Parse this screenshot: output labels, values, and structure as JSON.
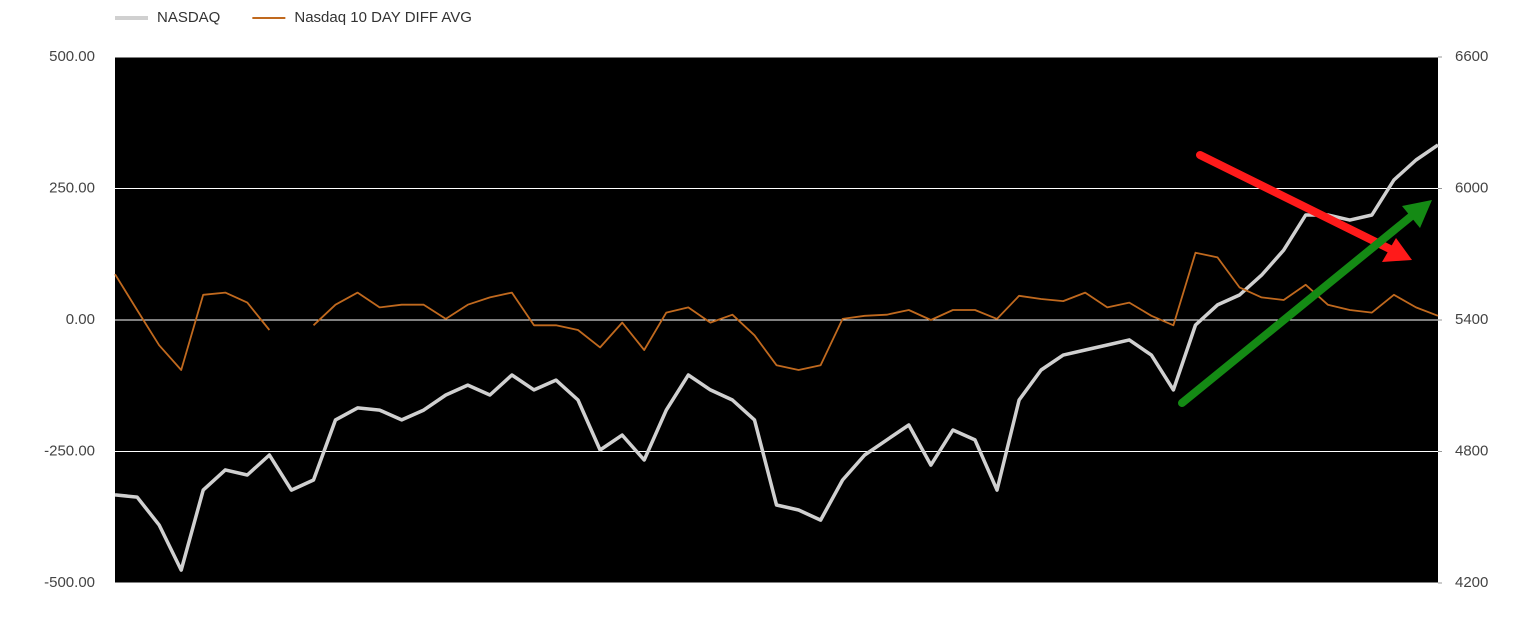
{
  "chart_data": {
    "type": "line",
    "legend": "top-left",
    "grid": true,
    "ylim": [
      -500,
      500
    ],
    "yticks": [
      {
        "value": -500,
        "label": "-500.00"
      },
      {
        "value": -250,
        "label": "-250.00"
      },
      {
        "value": 0,
        "label": "0.00"
      },
      {
        "value": 250,
        "label": "250.00"
      },
      {
        "value": 500,
        "label": "500.00"
      }
    ],
    "y2lim": [
      4200,
      6600
    ],
    "y2ticks": [
      4200,
      4800,
      5400,
      6000,
      6600
    ],
    "series": [
      {
        "name": "NASDAQ",
        "color": "#d0d0d0",
        "axis": "y2",
        "values": [
          4602,
          4592,
          4465,
          4259,
          4624,
          4716,
          4693,
          4784,
          4624,
          4670,
          4944,
          4999,
          4989,
          4944,
          4989,
          5058,
          5103,
          5058,
          5149,
          5081,
          5126,
          5035,
          4807,
          4875,
          4761,
          4989,
          5149,
          5081,
          5035,
          4944,
          4556,
          4533,
          4487,
          4670,
          4784,
          4853,
          4921,
          4738,
          4898,
          4853,
          4624,
          5035,
          5172,
          5240,
          5263,
          5286,
          5309,
          5240,
          5081,
          5377,
          5469,
          5514,
          5605,
          5719,
          5879,
          5879,
          5856,
          5879,
          6039,
          6130,
          6199
        ]
      },
      {
        "name": "Nasdaq 10 DAY DIFF AVG",
        "color": "#c0691e",
        "values": [
          87,
          19,
          -48,
          -95,
          48,
          52,
          33,
          -19,
          null,
          -10,
          29,
          52,
          24,
          29,
          29,
          2,
          29,
          43,
          52,
          -10,
          -10,
          -19,
          -52,
          -5,
          -57,
          14,
          24,
          -5,
          10,
          -29,
          -86,
          -95,
          -86,
          2,
          8,
          10,
          19,
          0,
          19,
          19,
          2,
          46,
          40,
          36,
          52,
          24,
          33,
          8,
          -10,
          128,
          119,
          62,
          43,
          38,
          67,
          29,
          19,
          14,
          48,
          24,
          8
        ]
      }
    ]
  }
}
